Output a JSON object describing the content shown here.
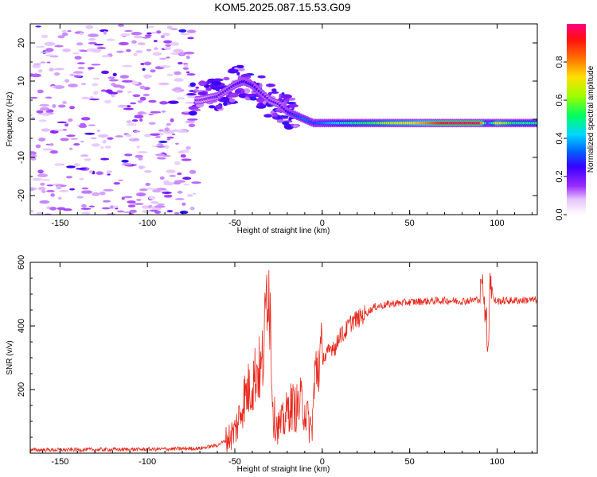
{
  "chart_data": [
    {
      "type": "heatmap",
      "title": "KOM5.2025.087.15.53.G09",
      "xlabel": "Height of straight line (km)",
      "ylabel": "Frequency (Hz)",
      "xlim": [
        -167,
        123
      ],
      "ylim": [
        -25,
        25
      ],
      "xticks": [
        "-150",
        "-100",
        "-50",
        "0",
        "50",
        "100"
      ],
      "yticks": [
        "-20",
        "-10",
        "0",
        "10",
        "20"
      ],
      "colorbar": {
        "label": "Normalized spectral amplitude",
        "range": [
          0,
          1
        ],
        "ticks": [
          "0.0",
          "0.2",
          "0.4",
          "0.6",
          "0.8"
        ]
      },
      "ridge": {
        "x": [
          -70,
          -60,
          -50,
          -45,
          -40,
          -35,
          -30,
          -25,
          -20,
          -15,
          -10,
          -5,
          0,
          10,
          20,
          30,
          40,
          50,
          60,
          70,
          80,
          90,
          95,
          100,
          110,
          123
        ],
        "y": [
          5,
          6,
          9,
          10,
          9,
          7,
          5,
          4,
          2,
          1,
          0,
          -1,
          -1,
          -1,
          -1,
          -1,
          -1,
          -1,
          -1,
          -1,
          -1,
          -1,
          -1,
          -1,
          -1,
          -1
        ],
        "amplitude": [
          0.15,
          0.2,
          0.22,
          0.25,
          0.25,
          0.22,
          0.2,
          0.2,
          0.25,
          0.3,
          0.35,
          0.3,
          0.35,
          0.45,
          0.5,
          0.55,
          0.65,
          0.7,
          0.8,
          0.95,
          0.95,
          0.95,
          0.3,
          0.7,
          0.5,
          0.5
        ]
      }
    },
    {
      "type": "line",
      "xlabel": "Height of straight line (km)",
      "ylabel": "SNR (v/v)",
      "xlim": [
        -167,
        123
      ],
      "ylim": [
        0,
        600
      ],
      "xticks": [
        "-150",
        "-100",
        "-50",
        "0",
        "50",
        "100"
      ],
      "yticks": [
        "200",
        "400",
        "600"
      ],
      "series": [
        {
          "color": "#e8291c",
          "x": [
            -167,
            -100,
            -70,
            -60,
            -55,
            -50,
            -47,
            -45,
            -43,
            -40,
            -37,
            -35,
            -33,
            -32,
            -31,
            -30,
            -29,
            -28,
            -25,
            -22,
            -20,
            -18,
            -15,
            -12,
            -10,
            -8,
            -6,
            -4,
            -2,
            0,
            2,
            4,
            6,
            8,
            10,
            12,
            15,
            18,
            20,
            25,
            30,
            40,
            50,
            60,
            70,
            80,
            85,
            90,
            92,
            94,
            95,
            96,
            98,
            100,
            110,
            123
          ],
          "y": [
            10,
            12,
            15,
            25,
            40,
            70,
            120,
            170,
            190,
            220,
            270,
            250,
            350,
            480,
            600,
            480,
            300,
            120,
            80,
            100,
            130,
            150,
            140,
            160,
            140,
            100,
            70,
            250,
            290,
            310,
            300,
            320,
            340,
            330,
            380,
            370,
            400,
            420,
            420,
            440,
            460,
            470,
            475,
            478,
            480,
            478,
            480,
            485,
            530,
            400,
            350,
            570,
            480,
            478,
            480,
            482
          ]
        }
      ]
    }
  ]
}
